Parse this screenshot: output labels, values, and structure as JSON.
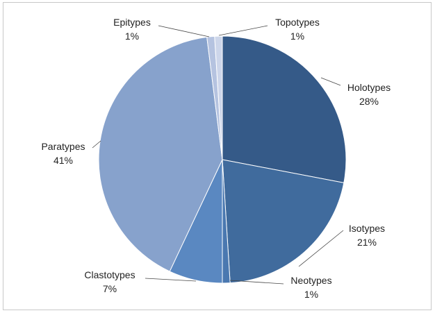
{
  "chart_data": {
    "type": "pie",
    "title": "",
    "legend": "none",
    "slices": [
      {
        "label": "Holotypes",
        "value": 28,
        "pct_label": "28%",
        "color": "#355a88"
      },
      {
        "label": "Isotypes",
        "value": 21,
        "pct_label": "21%",
        "color": "#406b9d"
      },
      {
        "label": "Neotypes",
        "value": 1,
        "pct_label": "1%",
        "color": "#4a78b0"
      },
      {
        "label": "Clastotypes",
        "value": 7,
        "pct_label": "7%",
        "color": "#5a88c1"
      },
      {
        "label": "Paratypes",
        "value": 41,
        "pct_label": "41%",
        "color": "#87a2cc"
      },
      {
        "label": "Epitypes",
        "value": 1,
        "pct_label": "1%",
        "color": "#b5c3e0"
      },
      {
        "label": "Topotypes",
        "value": 1,
        "pct_label": "1%",
        "color": "#cdd6ea"
      }
    ]
  }
}
